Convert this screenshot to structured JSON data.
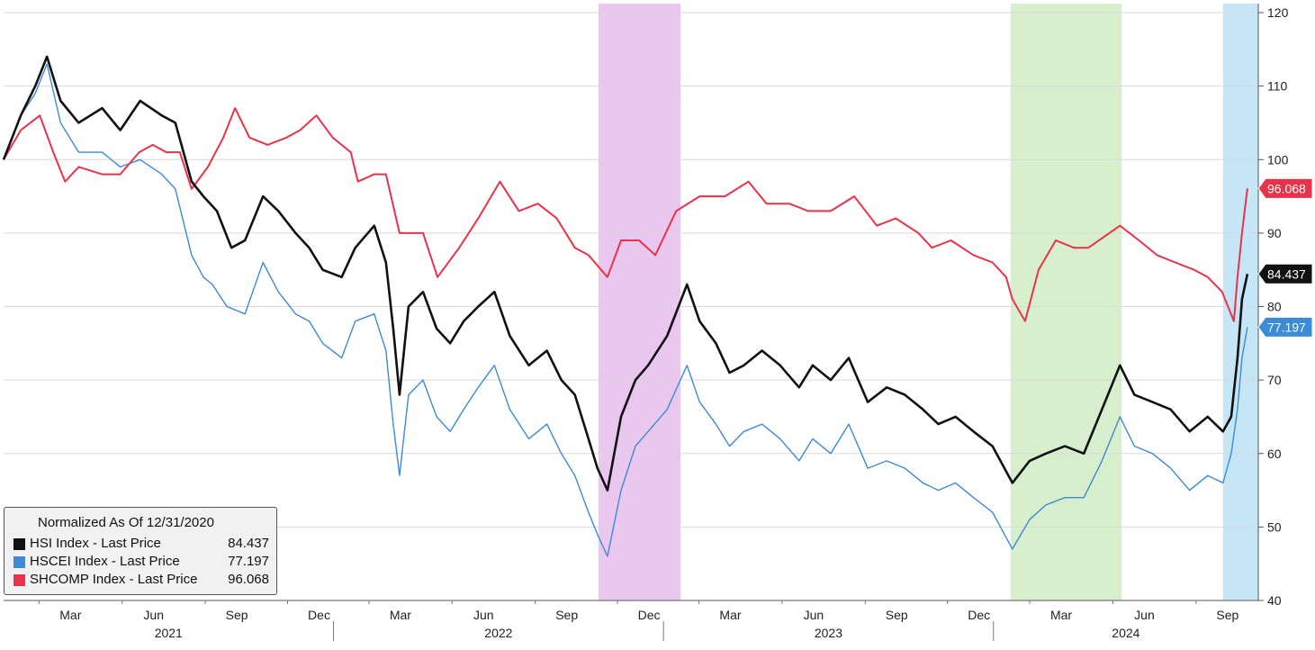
{
  "chart_data": {
    "type": "line",
    "legend_title": "Normalized As Of 12/31/2020",
    "y_axis": {
      "position": "right",
      "range": [
        40,
        120
      ],
      "ticks": [
        40,
        50,
        60,
        70,
        80,
        90,
        100,
        110,
        120
      ]
    },
    "x_axis": {
      "months": [
        "Mar",
        "Jun",
        "Sep",
        "Dec",
        "Mar",
        "Jun",
        "Sep",
        "Dec",
        "Mar",
        "Jun",
        "Sep",
        "Dec",
        "Mar",
        "Jun",
        "Sep"
      ],
      "years": [
        "2021",
        "2022",
        "2023",
        "2024"
      ],
      "range": [
        "2021-01-01",
        "2024-10-20"
      ]
    },
    "shaded_regions": [
      {
        "start": "2022-10-21",
        "end": "2023-01-20",
        "color": "#e9c7ef"
      },
      {
        "start": "2024-01-20",
        "end": "2024-05-22",
        "color": "#d7efcc"
      },
      {
        "start": "2024-09-11",
        "end": "2024-10-20",
        "color": "#c5e6f7"
      }
    ],
    "series": [
      {
        "name": "HSI Index - Last Price",
        "last_value": "84.437",
        "color": "#111111",
        "points": [
          [
            "2021-01-01",
            100
          ],
          [
            "2021-01-20",
            106
          ],
          [
            "2021-02-05",
            110
          ],
          [
            "2021-02-18",
            114
          ],
          [
            "2021-03-05",
            108
          ],
          [
            "2021-03-25",
            105
          ],
          [
            "2021-04-20",
            107
          ],
          [
            "2021-05-10",
            104
          ],
          [
            "2021-06-01",
            108
          ],
          [
            "2021-06-25",
            106
          ],
          [
            "2021-07-10",
            105
          ],
          [
            "2021-07-28",
            97
          ],
          [
            "2021-08-10",
            95
          ],
          [
            "2021-08-25",
            93
          ],
          [
            "2021-09-10",
            88
          ],
          [
            "2021-09-25",
            89
          ],
          [
            "2021-10-15",
            95
          ],
          [
            "2021-11-01",
            93
          ],
          [
            "2021-11-20",
            90
          ],
          [
            "2021-12-05",
            88
          ],
          [
            "2021-12-20",
            85
          ],
          [
            "2022-01-10",
            84
          ],
          [
            "2022-01-25",
            88
          ],
          [
            "2022-02-15",
            91
          ],
          [
            "2022-02-28",
            86
          ],
          [
            "2022-03-08",
            77
          ],
          [
            "2022-03-15",
            68
          ],
          [
            "2022-03-25",
            80
          ],
          [
            "2022-04-10",
            82
          ],
          [
            "2022-04-25",
            77
          ],
          [
            "2022-05-10",
            75
          ],
          [
            "2022-05-25",
            78
          ],
          [
            "2022-06-10",
            80
          ],
          [
            "2022-06-28",
            82
          ],
          [
            "2022-07-15",
            76
          ],
          [
            "2022-08-05",
            72
          ],
          [
            "2022-08-25",
            74
          ],
          [
            "2022-09-10",
            70
          ],
          [
            "2022-09-25",
            68
          ],
          [
            "2022-10-10",
            62
          ],
          [
            "2022-10-20",
            58
          ],
          [
            "2022-10-31",
            55
          ],
          [
            "2022-11-15",
            65
          ],
          [
            "2022-12-01",
            70
          ],
          [
            "2022-12-15",
            72
          ],
          [
            "2023-01-05",
            76
          ],
          [
            "2023-01-27",
            83
          ],
          [
            "2023-02-10",
            78
          ],
          [
            "2023-02-28",
            75
          ],
          [
            "2023-03-15",
            71
          ],
          [
            "2023-03-31",
            72
          ],
          [
            "2023-04-20",
            74
          ],
          [
            "2023-05-10",
            72
          ],
          [
            "2023-05-31",
            69
          ],
          [
            "2023-06-15",
            72
          ],
          [
            "2023-07-05",
            70
          ],
          [
            "2023-07-25",
            73
          ],
          [
            "2023-08-15",
            67
          ],
          [
            "2023-09-05",
            69
          ],
          [
            "2023-09-25",
            68
          ],
          [
            "2023-10-15",
            66
          ],
          [
            "2023-11-01",
            64
          ],
          [
            "2023-11-20",
            65
          ],
          [
            "2023-12-10",
            63
          ],
          [
            "2023-12-31",
            61
          ],
          [
            "2024-01-22",
            56
          ],
          [
            "2024-02-10",
            59
          ],
          [
            "2024-02-28",
            60
          ],
          [
            "2024-03-20",
            61
          ],
          [
            "2024-04-10",
            60
          ],
          [
            "2024-04-30",
            66
          ],
          [
            "2024-05-20",
            72
          ],
          [
            "2024-06-05",
            68
          ],
          [
            "2024-06-25",
            67
          ],
          [
            "2024-07-15",
            66
          ],
          [
            "2024-08-05",
            63
          ],
          [
            "2024-08-25",
            65
          ],
          [
            "2024-09-11",
            63
          ],
          [
            "2024-09-20",
            65
          ],
          [
            "2024-09-27",
            73
          ],
          [
            "2024-10-02",
            81
          ],
          [
            "2024-10-08",
            84.437
          ]
        ]
      },
      {
        "name": "HSCEI Index - Last Price",
        "last_value": "77.197",
        "color": "#3d8ad6",
        "points": [
          [
            "2021-01-01",
            100
          ],
          [
            "2021-01-20",
            106
          ],
          [
            "2021-02-05",
            109
          ],
          [
            "2021-02-18",
            113
          ],
          [
            "2021-03-05",
            105
          ],
          [
            "2021-03-25",
            101
          ],
          [
            "2021-04-20",
            101
          ],
          [
            "2021-05-10",
            99
          ],
          [
            "2021-06-01",
            100
          ],
          [
            "2021-06-25",
            98
          ],
          [
            "2021-07-10",
            96
          ],
          [
            "2021-07-28",
            87
          ],
          [
            "2021-08-10",
            84
          ],
          [
            "2021-08-20",
            83
          ],
          [
            "2021-09-05",
            80
          ],
          [
            "2021-09-25",
            79
          ],
          [
            "2021-10-15",
            86
          ],
          [
            "2021-11-01",
            82
          ],
          [
            "2021-11-20",
            79
          ],
          [
            "2021-12-05",
            78
          ],
          [
            "2021-12-20",
            75
          ],
          [
            "2022-01-10",
            73
          ],
          [
            "2022-01-25",
            78
          ],
          [
            "2022-02-15",
            79
          ],
          [
            "2022-02-28",
            74
          ],
          [
            "2022-03-08",
            64
          ],
          [
            "2022-03-15",
            57
          ],
          [
            "2022-03-25",
            68
          ],
          [
            "2022-04-10",
            70
          ],
          [
            "2022-04-25",
            65
          ],
          [
            "2022-05-10",
            63
          ],
          [
            "2022-05-25",
            66
          ],
          [
            "2022-06-10",
            69
          ],
          [
            "2022-06-28",
            72
          ],
          [
            "2022-07-15",
            66
          ],
          [
            "2022-08-05",
            62
          ],
          [
            "2022-08-25",
            64
          ],
          [
            "2022-09-10",
            60
          ],
          [
            "2022-09-25",
            57
          ],
          [
            "2022-10-10",
            52
          ],
          [
            "2022-10-20",
            49
          ],
          [
            "2022-10-31",
            46
          ],
          [
            "2022-11-15",
            55
          ],
          [
            "2022-12-01",
            61
          ],
          [
            "2022-12-15",
            63
          ],
          [
            "2023-01-05",
            66
          ],
          [
            "2023-01-27",
            72
          ],
          [
            "2023-02-10",
            67
          ],
          [
            "2023-02-28",
            64
          ],
          [
            "2023-03-15",
            61
          ],
          [
            "2023-03-31",
            63
          ],
          [
            "2023-04-20",
            64
          ],
          [
            "2023-05-10",
            62
          ],
          [
            "2023-05-31",
            59
          ],
          [
            "2023-06-15",
            62
          ],
          [
            "2023-07-05",
            60
          ],
          [
            "2023-07-25",
            64
          ],
          [
            "2023-08-15",
            58
          ],
          [
            "2023-09-05",
            59
          ],
          [
            "2023-09-25",
            58
          ],
          [
            "2023-10-15",
            56
          ],
          [
            "2023-11-01",
            55
          ],
          [
            "2023-11-20",
            56
          ],
          [
            "2023-12-10",
            54
          ],
          [
            "2023-12-31",
            52
          ],
          [
            "2024-01-22",
            47
          ],
          [
            "2024-02-10",
            51
          ],
          [
            "2024-02-28",
            53
          ],
          [
            "2024-03-20",
            54
          ],
          [
            "2024-04-10",
            54
          ],
          [
            "2024-04-30",
            59
          ],
          [
            "2024-05-20",
            65
          ],
          [
            "2024-06-05",
            61
          ],
          [
            "2024-06-25",
            60
          ],
          [
            "2024-07-15",
            58
          ],
          [
            "2024-08-05",
            55
          ],
          [
            "2024-08-25",
            57
          ],
          [
            "2024-09-11",
            56
          ],
          [
            "2024-09-20",
            60
          ],
          [
            "2024-09-27",
            66
          ],
          [
            "2024-10-02",
            73
          ],
          [
            "2024-10-08",
            77.197
          ]
        ]
      },
      {
        "name": "SHCOMP Index - Last Price",
        "last_value": "96.068",
        "color": "#e8334a",
        "points": [
          [
            "2021-01-01",
            100
          ],
          [
            "2021-01-20",
            104
          ],
          [
            "2021-02-10",
            106
          ],
          [
            "2021-02-25",
            101
          ],
          [
            "2021-03-10",
            97
          ],
          [
            "2021-03-25",
            99
          ],
          [
            "2021-04-20",
            98
          ],
          [
            "2021-05-10",
            98
          ],
          [
            "2021-05-31",
            101
          ],
          [
            "2021-06-15",
            102
          ],
          [
            "2021-06-30",
            101
          ],
          [
            "2021-07-15",
            101
          ],
          [
            "2021-07-28",
            96
          ],
          [
            "2021-08-15",
            99
          ],
          [
            "2021-09-01",
            103
          ],
          [
            "2021-09-14",
            107
          ],
          [
            "2021-09-30",
            103
          ],
          [
            "2021-10-20",
            102
          ],
          [
            "2021-11-10",
            103
          ],
          [
            "2021-11-25",
            104
          ],
          [
            "2021-12-13",
            106
          ],
          [
            "2021-12-31",
            103
          ],
          [
            "2022-01-20",
            101
          ],
          [
            "2022-01-28",
            97
          ],
          [
            "2022-02-15",
            98
          ],
          [
            "2022-02-28",
            98
          ],
          [
            "2022-03-15",
            90
          ],
          [
            "2022-04-10",
            90
          ],
          [
            "2022-04-26",
            84
          ],
          [
            "2022-05-20",
            88
          ],
          [
            "2022-06-10",
            92
          ],
          [
            "2022-07-04",
            97
          ],
          [
            "2022-07-25",
            93
          ],
          [
            "2022-08-15",
            94
          ],
          [
            "2022-09-05",
            92
          ],
          [
            "2022-09-25",
            88
          ],
          [
            "2022-10-10",
            87
          ],
          [
            "2022-10-31",
            84
          ],
          [
            "2022-11-15",
            89
          ],
          [
            "2022-12-05",
            89
          ],
          [
            "2022-12-23",
            87
          ],
          [
            "2023-01-15",
            93
          ],
          [
            "2023-02-10",
            95
          ],
          [
            "2023-03-10",
            95
          ],
          [
            "2023-04-05",
            97
          ],
          [
            "2023-04-25",
            94
          ],
          [
            "2023-05-20",
            94
          ],
          [
            "2023-06-10",
            93
          ],
          [
            "2023-07-05",
            93
          ],
          [
            "2023-07-31",
            95
          ],
          [
            "2023-08-25",
            91
          ],
          [
            "2023-09-15",
            92
          ],
          [
            "2023-10-10",
            90
          ],
          [
            "2023-10-25",
            88
          ],
          [
            "2023-11-15",
            89
          ],
          [
            "2023-12-10",
            87
          ],
          [
            "2023-12-31",
            86
          ],
          [
            "2024-01-15",
            84
          ],
          [
            "2024-01-22",
            81
          ],
          [
            "2024-02-05",
            78
          ],
          [
            "2024-02-20",
            85
          ],
          [
            "2024-03-10",
            89
          ],
          [
            "2024-03-30",
            88
          ],
          [
            "2024-04-15",
            88
          ],
          [
            "2024-05-20",
            91
          ],
          [
            "2024-06-10",
            89
          ],
          [
            "2024-06-30",
            87
          ],
          [
            "2024-07-20",
            86
          ],
          [
            "2024-08-10",
            85
          ],
          [
            "2024-08-25",
            84
          ],
          [
            "2024-09-10",
            82
          ],
          [
            "2024-09-23",
            78
          ],
          [
            "2024-09-27",
            84
          ],
          [
            "2024-10-02",
            90
          ],
          [
            "2024-10-08",
            96.068
          ]
        ]
      }
    ]
  }
}
